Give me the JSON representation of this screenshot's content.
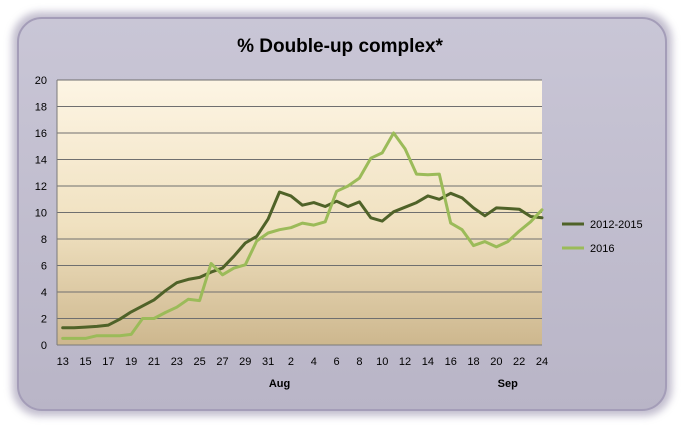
{
  "chart_data": {
    "type": "line",
    "title": "% Double-up complex*",
    "xlabel": "",
    "ylabel": "",
    "ylim": [
      0,
      20
    ],
    "y_ticks": [
      "0",
      "2",
      "4",
      "6",
      "8",
      "10",
      "12",
      "14",
      "16",
      "18",
      "20"
    ],
    "x_tick_labels": [
      "13",
      "15",
      "17",
      "19",
      "21",
      "23",
      "25",
      "27",
      "29",
      "31",
      "2",
      "4",
      "6",
      "8",
      "10",
      "12",
      "14",
      "16",
      "18",
      "20",
      "22",
      "24"
    ],
    "month_labels": [
      {
        "label": "Aug",
        "at_index": 19
      },
      {
        "label": "Sep",
        "at_index": 39
      }
    ],
    "x": [
      "Jul 13",
      "Jul 14",
      "Jul 15",
      "Jul 16",
      "Jul 17",
      "Jul 18",
      "Jul 19",
      "Jul 20",
      "Jul 21",
      "Jul 22",
      "Jul 23",
      "Jul 24",
      "Jul 25",
      "Jul 26",
      "Jul 27",
      "Jul 28",
      "Jul 29",
      "Jul 30",
      "Jul 31",
      "Aug 1",
      "Aug 2",
      "Aug 3",
      "Aug 4",
      "Aug 5",
      "Aug 6",
      "Aug 7",
      "Aug 8",
      "Aug 9",
      "Aug 10",
      "Aug 11",
      "Aug 12",
      "Aug 13",
      "Aug 14",
      "Aug 15",
      "Aug 16",
      "Aug 17",
      "Aug 18",
      "Aug 19",
      "Aug 20",
      "Aug 21",
      "Aug 22",
      "Aug 23",
      "Aug 24"
    ],
    "series": [
      {
        "name": "2012-2015",
        "color": "#4f6228",
        "values": [
          1.3,
          1.3,
          1.35,
          1.4,
          1.5,
          1.95,
          2.5,
          2.95,
          3.4,
          4.1,
          4.7,
          4.95,
          5.1,
          5.5,
          5.8,
          6.7,
          7.7,
          8.2,
          9.5,
          11.55,
          11.25,
          10.55,
          10.75,
          10.45,
          10.85,
          10.45,
          10.8,
          9.6,
          9.35,
          10.05,
          10.4,
          10.75,
          11.25,
          11.0,
          11.45,
          11.1,
          10.35,
          9.75,
          10.35,
          10.3,
          10.25,
          9.7,
          9.6
        ]
      },
      {
        "name": "2016",
        "color": "#9bbb59",
        "values": [
          0.5,
          0.5,
          0.5,
          0.7,
          0.7,
          0.7,
          0.8,
          2.0,
          2.0,
          2.45,
          2.85,
          3.45,
          3.35,
          6.15,
          5.3,
          5.8,
          6.05,
          7.85,
          8.45,
          8.7,
          8.85,
          9.2,
          9.05,
          9.3,
          11.6,
          12.0,
          12.6,
          14.1,
          14.5,
          16.0,
          14.8,
          12.9,
          12.85,
          12.9,
          9.2,
          8.7,
          7.5,
          7.8,
          7.4,
          7.8,
          8.6,
          9.3,
          10.2
        ]
      }
    ],
    "grid": true,
    "legend": "right"
  }
}
